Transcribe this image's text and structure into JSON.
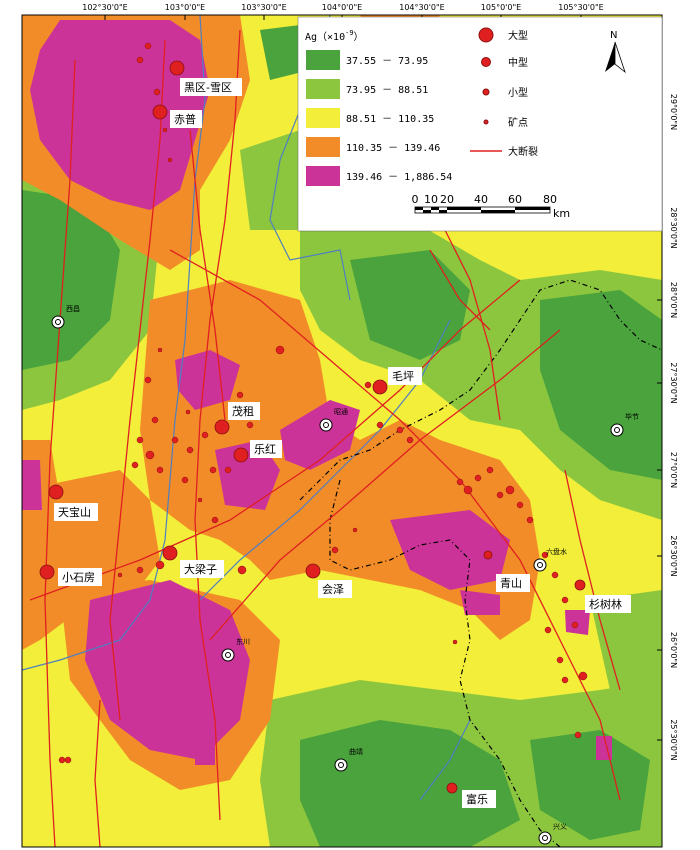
{
  "longitude_ticks": [
    "102°30'0\"E",
    "103°0'0\"E",
    "103°30'0\"E",
    "104°0'0\"E",
    "104°30'0\"E",
    "105°0'0\"E",
    "105°30'0\"E"
  ],
  "latitude_ticks": [
    "29°0'0\"N",
    "28°30'0\"N",
    "28°0'0\"N",
    "27°30'0\"N",
    "27°0'0\"N",
    "26°30'0\"N",
    "26°0'0\"N",
    "25°30'0\"N"
  ],
  "legend": {
    "title": "Ag（×10",
    "title_exp": "-9",
    "title_end": "）",
    "classes": [
      {
        "label": "37.55 － 73.95",
        "color": "#4aa33c"
      },
      {
        "label": "73.95 － 88.51",
        "color": "#8cc63e"
      },
      {
        "label": "88.51 － 110.35",
        "color": "#f2ee3a"
      },
      {
        "label": "110.35 － 139.46",
        "color": "#f28c28"
      },
      {
        "label": "139.46 － 1,886.54",
        "color": "#cc3399"
      }
    ],
    "symbols": [
      {
        "label": "大型",
        "kind": "large"
      },
      {
        "label": "中型",
        "kind": "medium"
      },
      {
        "label": "小型",
        "kind": "small"
      },
      {
        "label": "矿点",
        "kind": "point"
      },
      {
        "label": "大断裂",
        "kind": "fault"
      }
    ],
    "fault_color": "#e02020",
    "deposit_color": "#e02020"
  },
  "scale_bar": {
    "ticks": [
      "0",
      "10",
      "20",
      "40",
      "60",
      "80"
    ],
    "unit": "km"
  },
  "north_label": "N",
  "deposits": [
    "黑区-雪区",
    "赤普",
    "茂租",
    "乐红",
    "毛坪",
    "天宝山",
    "小石房",
    "大梁子",
    "会泽",
    "青山",
    "杉树林",
    "富乐"
  ],
  "cities": [
    "西昌",
    "昭通",
    "毕节",
    "六盘水",
    "东川",
    "曲靖",
    "兴义"
  ]
}
